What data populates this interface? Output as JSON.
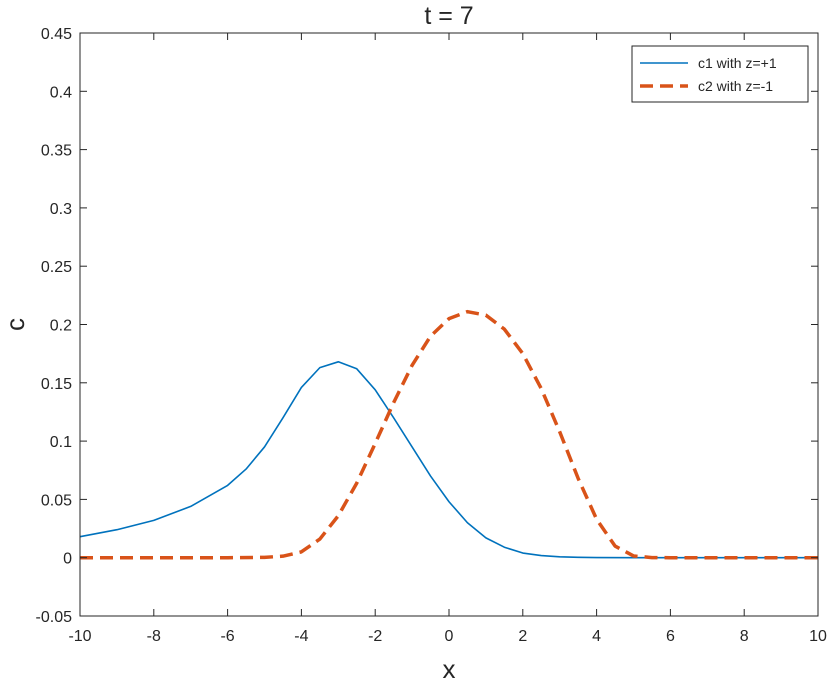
{
  "chart_data": {
    "type": "line",
    "title": "t = 7",
    "xlabel": "x",
    "ylabel": "c",
    "xlim": [
      -10,
      10
    ],
    "ylim": [
      -0.05,
      0.45
    ],
    "xticks": [
      -10,
      -8,
      -6,
      -4,
      -2,
      0,
      2,
      4,
      6,
      8,
      10
    ],
    "yticks": [
      -0.05,
      0,
      0.05,
      0.1,
      0.15,
      0.2,
      0.25,
      0.3,
      0.35,
      0.4,
      0.45
    ],
    "xtick_labels": [
      "-10",
      "-8",
      "-6",
      "-4",
      "-2",
      "0",
      "2",
      "4",
      "6",
      "8",
      "10"
    ],
    "ytick_labels": [
      "-0.05",
      "0",
      "0.05",
      "0.1",
      "0.15",
      "0.2",
      "0.25",
      "0.3",
      "0.35",
      "0.4",
      "0.45"
    ],
    "grid": false,
    "legend_position": "top-right",
    "series": [
      {
        "name": "c1 with z=+1",
        "color": "#0072BD",
        "style": "solid",
        "x": [
          -10,
          -9,
          -8,
          -7,
          -6,
          -5.5,
          -5,
          -4.5,
          -4,
          -3.5,
          -3,
          -2.5,
          -2,
          -1.5,
          -1,
          -0.5,
          0,
          0.5,
          1,
          1.5,
          2,
          2.5,
          3,
          3.5,
          4,
          5,
          6,
          7,
          8,
          9,
          10
        ],
        "y": [
          0.018,
          0.024,
          0.032,
          0.044,
          0.062,
          0.076,
          0.095,
          0.12,
          0.146,
          0.163,
          0.168,
          0.162,
          0.144,
          0.12,
          0.095,
          0.07,
          0.048,
          0.03,
          0.017,
          0.009,
          0.004,
          0.0018,
          0.0008,
          0.0003,
          0.0001,
          0,
          0,
          0,
          0,
          0,
          0
        ]
      },
      {
        "name": "c2 with z=-1",
        "color": "#D95319",
        "style": "dashed",
        "x": [
          -10,
          -9,
          -8,
          -7,
          -6,
          -5,
          -4.5,
          -4,
          -3.5,
          -3,
          -2.5,
          -2,
          -1.5,
          -1,
          -0.5,
          0,
          0.5,
          1,
          1.5,
          2,
          2.5,
          3,
          3.5,
          4,
          4.5,
          5,
          5.5,
          6,
          7,
          8,
          9,
          10
        ],
        "y": [
          0,
          0,
          0,
          0,
          0,
          0.0003,
          0.0013,
          0.005,
          0.016,
          0.036,
          0.064,
          0.098,
          0.133,
          0.165,
          0.19,
          0.205,
          0.211,
          0.208,
          0.196,
          0.175,
          0.145,
          0.108,
          0.068,
          0.033,
          0.01,
          0.0015,
          0.0001,
          0,
          0,
          0,
          0,
          0
        ]
      }
    ]
  }
}
